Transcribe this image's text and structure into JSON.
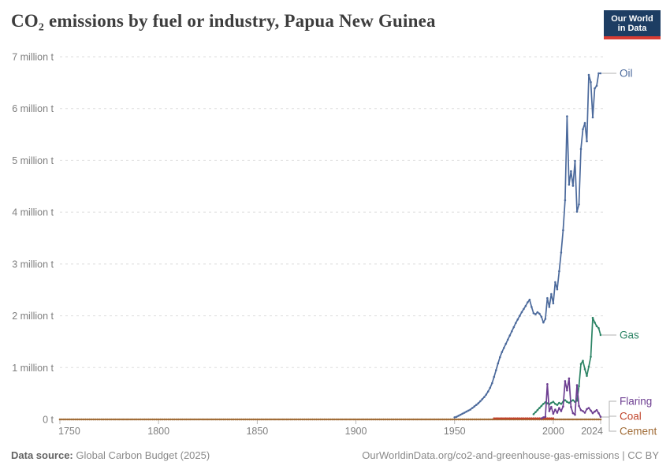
{
  "header": {
    "title": "CO₂ emissions by fuel or industry, Papua New Guinea",
    "logo": {
      "line1": "Our World",
      "line2": "in Data"
    }
  },
  "chart_data": {
    "type": "line",
    "title": "CO₂ emissions by fuel or industry, Papua New Guinea",
    "unit": "tonnes of CO₂",
    "xlim": [
      1750,
      2024
    ],
    "ylim": [
      0,
      7000000
    ],
    "grid": "horizontal dashed",
    "legend_position": "right edge of lines",
    "y_ticks": [
      {
        "value": 0,
        "label": "0 t"
      },
      {
        "value": 1,
        "label": "1 million t"
      },
      {
        "value": 2,
        "label": "2 million t"
      },
      {
        "value": 3,
        "label": "3 million t"
      },
      {
        "value": 4,
        "label": "4 million t"
      },
      {
        "value": 5,
        "label": "5 million t"
      },
      {
        "value": 6,
        "label": "6 million t"
      },
      {
        "value": 7,
        "label": "7 million t"
      }
    ],
    "x_ticks": [
      {
        "year": 1750,
        "label": "1750"
      },
      {
        "year": 1800,
        "label": "1800"
      },
      {
        "year": 1850,
        "label": "1850"
      },
      {
        "year": 1900,
        "label": "1900"
      },
      {
        "year": 1950,
        "label": "1950"
      },
      {
        "year": 2000,
        "label": "2000"
      },
      {
        "year": 2024,
        "label": "2024"
      }
    ],
    "value_unit_note": "values in million tonnes",
    "series": [
      {
        "name": "Cement",
        "color": "#A06B35",
        "start_year": 1750,
        "end_year": 2024,
        "constant": 0
      },
      {
        "name": "Coal",
        "color": "#C0442B",
        "start_year": 1970,
        "end_year": 2000,
        "constant": 0.02
      },
      {
        "name": "Oil",
        "color": "#4C6A9C",
        "start_year": 1950,
        "values": [
          0.04,
          0.05,
          0.07,
          0.09,
          0.11,
          0.13,
          0.15,
          0.17,
          0.19,
          0.22,
          0.25,
          0.28,
          0.31,
          0.35,
          0.39,
          0.43,
          0.48,
          0.54,
          0.61,
          0.7,
          0.82,
          0.95,
          1.08,
          1.2,
          1.3,
          1.38,
          1.46,
          1.54,
          1.62,
          1.7,
          1.78,
          1.86,
          1.93,
          2.0,
          2.07,
          2.13,
          2.19,
          2.26,
          2.31,
          2.17,
          2.05,
          2.03,
          2.07,
          2.04,
          1.98,
          1.87,
          1.94,
          2.34,
          2.17,
          2.42,
          2.24,
          2.65,
          2.51,
          2.86,
          3.22,
          3.65,
          4.23,
          5.85,
          4.53,
          4.79,
          4.51,
          4.99,
          4.01,
          4.15,
          5.22,
          5.6,
          5.72,
          5.37,
          6.65,
          6.51,
          5.83,
          6.39,
          6.44,
          6.68,
          6.68
        ]
      },
      {
        "name": "Gas",
        "color": "#2C8465",
        "start_year": 1990,
        "values": [
          0.1,
          0.14,
          0.18,
          0.22,
          0.26,
          0.3,
          0.33,
          0.31,
          0.29,
          0.32,
          0.34,
          0.3,
          0.28,
          0.32,
          0.3,
          0.34,
          0.37,
          0.34,
          0.32,
          0.35,
          0.37,
          0.34,
          0.36,
          0.64,
          1.07,
          1.13,
          0.97,
          0.84,
          1.02,
          1.21,
          1.96,
          1.87,
          1.8,
          1.76,
          1.63
        ]
      },
      {
        "name": "Flaring",
        "color": "#6D3E91",
        "start_year": 1994,
        "values": [
          0.02,
          0.04,
          0.05,
          0.68,
          0.16,
          0.24,
          0.11,
          0.19,
          0.13,
          0.22,
          0.16,
          0.25,
          0.74,
          0.56,
          0.79,
          0.24,
          0.12,
          0.09,
          0.66,
          0.26,
          0.18,
          0.16,
          0.13,
          0.2,
          0.22,
          0.17,
          0.12,
          0.15,
          0.18,
          0.12,
          0.05
        ]
      }
    ]
  },
  "footer": {
    "source_label": "Data source:",
    "source_value": " Global Carbon Budget (2025)",
    "right": "OurWorldinData.org/co2-and-greenhouse-gas-emissions | CC BY"
  }
}
